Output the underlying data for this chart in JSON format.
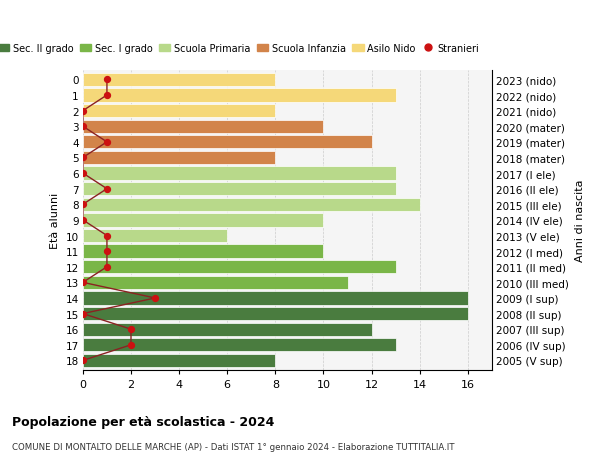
{
  "ages": [
    18,
    17,
    16,
    15,
    14,
    13,
    12,
    11,
    10,
    9,
    8,
    7,
    6,
    5,
    4,
    3,
    2,
    1,
    0
  ],
  "right_labels": [
    "2005 (V sup)",
    "2006 (IV sup)",
    "2007 (III sup)",
    "2008 (II sup)",
    "2009 (I sup)",
    "2010 (III med)",
    "2011 (II med)",
    "2012 (I med)",
    "2013 (V ele)",
    "2014 (IV ele)",
    "2015 (III ele)",
    "2016 (II ele)",
    "2017 (I ele)",
    "2018 (mater)",
    "2019 (mater)",
    "2020 (mater)",
    "2021 (nido)",
    "2022 (nido)",
    "2023 (nido)"
  ],
  "bar_values": [
    8,
    13,
    12,
    16,
    16,
    11,
    13,
    10,
    6,
    10,
    14,
    13,
    13,
    8,
    12,
    10,
    8,
    13,
    8
  ],
  "bar_colors": [
    "#4a7c3f",
    "#4a7c3f",
    "#4a7c3f",
    "#4a7c3f",
    "#4a7c3f",
    "#7ab648",
    "#7ab648",
    "#7ab648",
    "#b8d98a",
    "#b8d98a",
    "#b8d98a",
    "#b8d98a",
    "#b8d98a",
    "#d2844a",
    "#d2844a",
    "#d2844a",
    "#f5d879",
    "#f5d879",
    "#f5d879"
  ],
  "stranieri_values": [
    0,
    2,
    2,
    0,
    3,
    0,
    1,
    1,
    1,
    0,
    0,
    1,
    0,
    0,
    1,
    0,
    0,
    1,
    1
  ],
  "legend_labels": [
    "Sec. II grado",
    "Sec. I grado",
    "Scuola Primaria",
    "Scuola Infanzia",
    "Asilo Nido",
    "Stranieri"
  ],
  "legend_colors": [
    "#4a7c3f",
    "#7ab648",
    "#b8d98a",
    "#d2844a",
    "#f5d879",
    "#cc2222"
  ],
  "ylabel_left": "Età alunni",
  "ylabel_right": "Anni di nascita",
  "xlim": [
    0,
    17
  ],
  "xticks": [
    0,
    2,
    4,
    6,
    8,
    10,
    12,
    14,
    16
  ],
  "title": "Popolazione per età scolastica - 2024",
  "subtitle": "COMUNE DI MONTALTO DELLE MARCHE (AP) - Dati ISTAT 1° gennaio 2024 - Elaborazione TUTTITALIA.IT",
  "bar_height": 0.85,
  "stranieri_line_color": "#8b2222",
  "stranieri_dot_color": "#cc1111",
  "background_color": "#ffffff",
  "plot_bg_color": "#f5f5f5"
}
